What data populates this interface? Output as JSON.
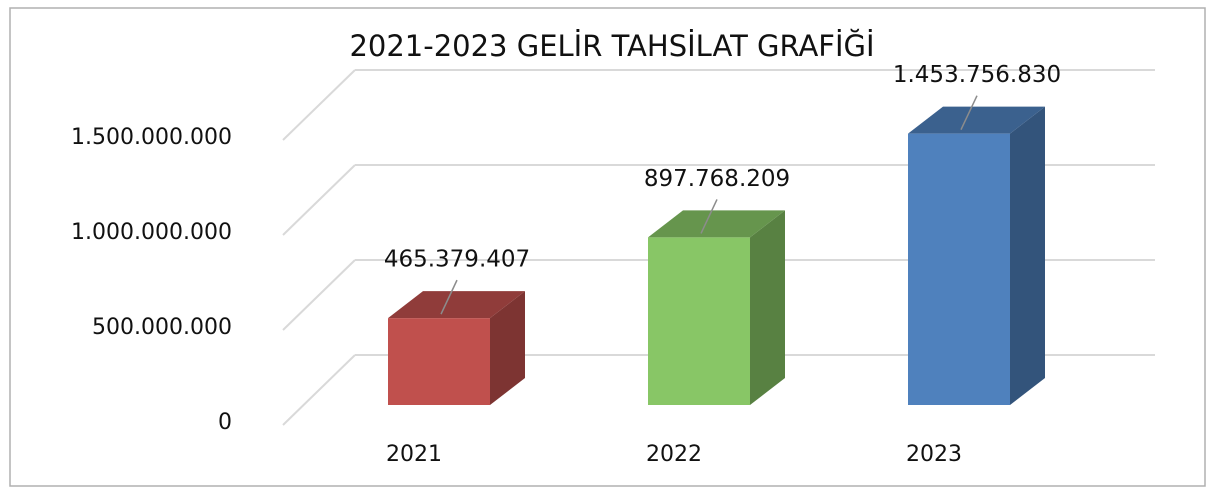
{
  "chart_data": {
    "type": "bar3d",
    "title": "2021-2023 GELİR TAHSİLAT GRAFİĞİ",
    "categories": [
      "2021",
      "2022",
      "2023"
    ],
    "values": [
      465379407,
      897768209,
      1453756830
    ],
    "value_labels": [
      "465.379.407",
      "897.768.209",
      "1.453.756.830"
    ],
    "colors": [
      "#c0504d",
      "#88c666",
      "#4f81bd"
    ],
    "ylim": [
      0,
      1500000000
    ],
    "yticks": [
      0,
      {
        "value": 500000000,
        "label": "500.000.000"
      },
      {
        "value": 1000000000,
        "label": "1.000.000.000"
      },
      {
        "value": 1500000000,
        "label": "1.500.000.000"
      }
    ],
    "grid": true
  }
}
